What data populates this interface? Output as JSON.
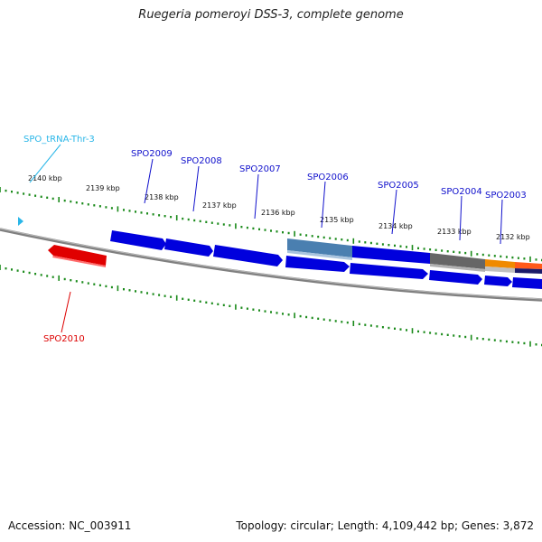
{
  "title": "Ruegeria pomeroyi DSS-3, complete genome",
  "footer": {
    "accession": "Accession: NC_003911",
    "summary": "Topology: circular; Length: 4,109,442 bp; Genes: 3,872"
  },
  "ruler": {
    "labels": [
      "2140 kbp",
      "2139 kbp",
      "2138 kbp",
      "2137 kbp",
      "2136 kbp",
      "2135 kbp",
      "2134 kbp",
      "2133 kbp",
      "2132 kbp"
    ]
  },
  "genes": [
    {
      "id": "SPO_tRNA-Thr-3",
      "label": "SPO_tRNA-Thr-3",
      "strand": "forward",
      "color": "#29b6e8"
    },
    {
      "id": "SPO2010",
      "label": "SPO2010",
      "strand": "reverse",
      "color": "#e00000"
    },
    {
      "id": "SPO2009",
      "label": "SPO2009",
      "strand": "forward",
      "color": "#0000dd"
    },
    {
      "id": "SPO2008",
      "label": "SPO2008",
      "strand": "forward",
      "color": "#0000dd"
    },
    {
      "id": "SPO2007",
      "label": "SPO2007",
      "strand": "forward",
      "color": "#0000dd"
    },
    {
      "id": "SPO2006",
      "label": "SPO2006",
      "strand": "forward",
      "color": "#0000dd"
    },
    {
      "id": "SPO2005",
      "label": "SPO2005",
      "strand": "forward",
      "color": "#0000dd"
    },
    {
      "id": "SPO2004",
      "label": "SPO2004",
      "strand": "forward",
      "color": "#0000dd"
    },
    {
      "id": "SPO2003",
      "label": "SPO2003",
      "strand": "forward",
      "color": "#0000dd"
    }
  ],
  "colors": {
    "backbone": "#808080",
    "ticks": "#1a8a1a",
    "cds": "#0000dd",
    "reverse_cds": "#e00000",
    "trna": "#29b6e8",
    "feature_steel": "#4a7fb0",
    "feature_grey": "#666666",
    "feature_orange": "#f08a00",
    "label_forward": "#1010cc",
    "label_reverse": "#dd0000",
    "label_trna": "#29b6e8"
  }
}
